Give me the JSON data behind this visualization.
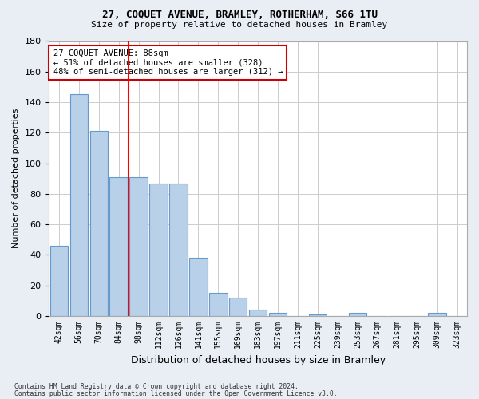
{
  "title1": "27, COQUET AVENUE, BRAMLEY, ROTHERHAM, S66 1TU",
  "title2": "Size of property relative to detached houses in Bramley",
  "xlabel": "Distribution of detached houses by size in Bramley",
  "ylabel": "Number of detached properties",
  "bar_values": [
    46,
    145,
    121,
    91,
    91,
    87,
    87,
    38,
    15,
    12,
    4,
    2,
    0,
    1,
    0,
    2,
    0,
    0,
    0,
    2,
    0
  ],
  "x_labels": [
    "42sqm",
    "56sqm",
    "70sqm",
    "84sqm",
    "98sqm",
    "112sqm",
    "126sqm",
    "141sqm",
    "155sqm",
    "169sqm",
    "183sqm",
    "197sqm",
    "211sqm",
    "225sqm",
    "239sqm",
    "253sqm",
    "267sqm",
    "281sqm",
    "295sqm",
    "309sqm",
    "323sqm"
  ],
  "bar_color": "#b8d0e8",
  "bar_edge_color": "#6699cc",
  "redline_index": 3.5,
  "annotation_text": "27 COQUET AVENUE: 88sqm\n← 51% of detached houses are smaller (328)\n48% of semi-detached houses are larger (312) →",
  "annotation_box_color": "#ffffff",
  "annotation_box_edge": "#cc0000",
  "ylim": [
    0,
    180
  ],
  "yticks": [
    0,
    20,
    40,
    60,
    80,
    100,
    120,
    140,
    160,
    180
  ],
  "footer1": "Contains HM Land Registry data © Crown copyright and database right 2024.",
  "footer2": "Contains public sector information licensed under the Open Government Licence v3.0.",
  "bg_color": "#e8eef4",
  "plot_bg_color": "#ffffff",
  "grid_color": "#cccccc"
}
